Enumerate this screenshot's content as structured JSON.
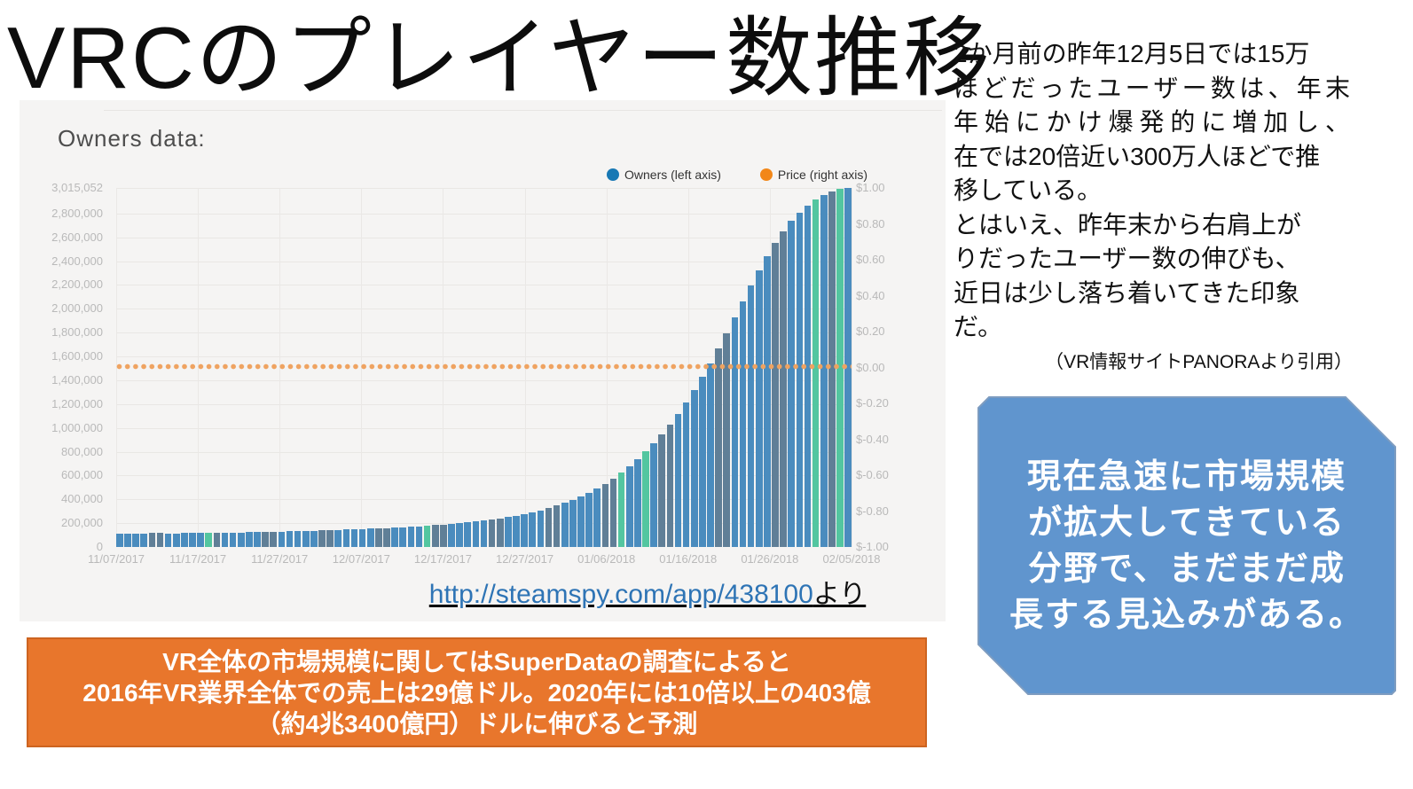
{
  "slide": {
    "title": "VRCのプレイヤー数推移",
    "right_text": {
      "lines": [
        "2か月前の昨年12月5日では15万",
        "ほどだったユーザー数は、年末",
        "年始にかけ爆発的に増加し、",
        "在では20倍近い300万人ほどで推",
        "移している。",
        "とはいえ、昨年末から右肩上が",
        "りだったユーザー数の伸びも、",
        "近日は少し落ち着いてきた印象",
        "だ。"
      ],
      "justify_indices": [
        1,
        2
      ],
      "citation": "（VR情報サイトPANORAより引用）"
    },
    "source_link": {
      "url_text": "http://steamspy.com/app/438100",
      "suffix": "より"
    },
    "callout": {
      "lines": [
        "現在急速に市場規模",
        "が拡大してきている",
        "分野で、まだまだ成",
        "長する見込みがある。"
      ],
      "fill": "#6095ce",
      "border": "#7e9cc0",
      "text_color": "#ffffff"
    },
    "banner": {
      "lines": [
        "VR全体の市場規模に関してはSuperDataの調査によると",
        "2016年VR業界全体での売上は29億ドル。2020年には10倍以上の403億",
        "（約4兆3400億円）ドルに伸びると予測"
      ],
      "fill": "#e8762c",
      "border": "#cd6420",
      "text_color": "#ffffff"
    }
  },
  "chart_data": {
    "type": "bar",
    "title": "Owners data:",
    "legend": [
      {
        "label": "Owners (left axis)",
        "color": "#1878b4"
      },
      {
        "label": "Price (right axis)",
        "color": "#f28718"
      }
    ],
    "x_tick_labels": [
      "11/07/2017",
      "11/17/2017",
      "11/27/2017",
      "12/07/2017",
      "12/17/2017",
      "12/27/2017",
      "01/06/2018",
      "01/16/2018",
      "01/26/2018",
      "02/05/2018"
    ],
    "y_left_ticks": [
      {
        "label": "3,015,052",
        "value": 3015052
      },
      {
        "label": "2,800,000",
        "value": 2800000
      },
      {
        "label": "2,600,000",
        "value": 2600000
      },
      {
        "label": "2,400,000",
        "value": 2400000
      },
      {
        "label": "2,200,000",
        "value": 2200000
      },
      {
        "label": "2,000,000",
        "value": 2000000
      },
      {
        "label": "1,800,000",
        "value": 1800000
      },
      {
        "label": "1,600,000",
        "value": 1600000
      },
      {
        "label": "1,400,000",
        "value": 1400000
      },
      {
        "label": "1,200,000",
        "value": 1200000
      },
      {
        "label": "1,000,000",
        "value": 1000000
      },
      {
        "label": "800,000",
        "value": 800000
      },
      {
        "label": "600,000",
        "value": 600000
      },
      {
        "label": "400,000",
        "value": 400000
      },
      {
        "label": "200,000",
        "value": 200000
      },
      {
        "label": "0",
        "value": 0
      }
    ],
    "y_right_ticks": [
      "$1.00",
      "$0.80",
      "$0.60",
      "$0.40",
      "$0.20",
      "$0.00",
      "$-0.20",
      "$-0.40",
      "$-0.60",
      "$-0.80",
      "$-1.00"
    ],
    "y_max": 3015052,
    "y_right_range": [
      -1.0,
      1.0
    ],
    "grid": true,
    "legend_position": "top-right",
    "series": [
      {
        "name": "Owners",
        "axis": "left",
        "daily_from": "11/07/2017",
        "daily_to": "02/05/2018",
        "values": [
          112000,
          113000,
          114000,
          115000,
          116000,
          117000,
          113500,
          114500,
          116000,
          117500,
          119000,
          120500,
          121500,
          119500,
          121000,
          122500,
          124000,
          125500,
          127000,
          128500,
          130000,
          131500,
          133500,
          135500,
          137500,
          139500,
          141500,
          143500,
          146000,
          148500,
          151000,
          153500,
          156500,
          159500,
          162500,
          166000,
          169500,
          173500,
          178000,
          182500,
          187500,
          193000,
          199000,
          205500,
          212500,
          220500,
          229500,
          239500,
          250500,
          262500,
          276000,
          291000,
          307500,
          326000,
          346500,
          369500,
          395000,
          424000,
          456000,
          492000,
          532000,
          576000,
          625000,
          678000,
          737000,
          801000,
          871000,
          947000,
          1029000,
          1118000,
          1214000,
          1317000,
          1427000,
          1544000,
          1667000,
          1795000,
          1927000,
          2061000,
          2194000,
          2323000,
          2444000,
          2554000,
          2652000,
          2737000,
          2809000,
          2869000,
          2917000,
          2955000,
          2984000,
          3005000,
          3015052
        ]
      },
      {
        "name": "Price",
        "axis": "right",
        "flat_value": 0.0,
        "style": "dotted-line"
      }
    ],
    "bar_colors": {
      "normal": "#4a8cbe",
      "weekend": "#607f97",
      "highlight": "#53c6a0"
    },
    "weekend_indices": [
      4,
      5,
      11,
      12,
      18,
      19,
      25,
      26,
      32,
      33,
      39,
      40,
      46,
      47,
      53,
      54,
      60,
      61,
      67,
      68,
      74,
      75,
      81,
      82,
      88,
      89
    ],
    "highlight_indices": [
      11,
      38,
      62,
      65,
      86,
      89
    ]
  }
}
